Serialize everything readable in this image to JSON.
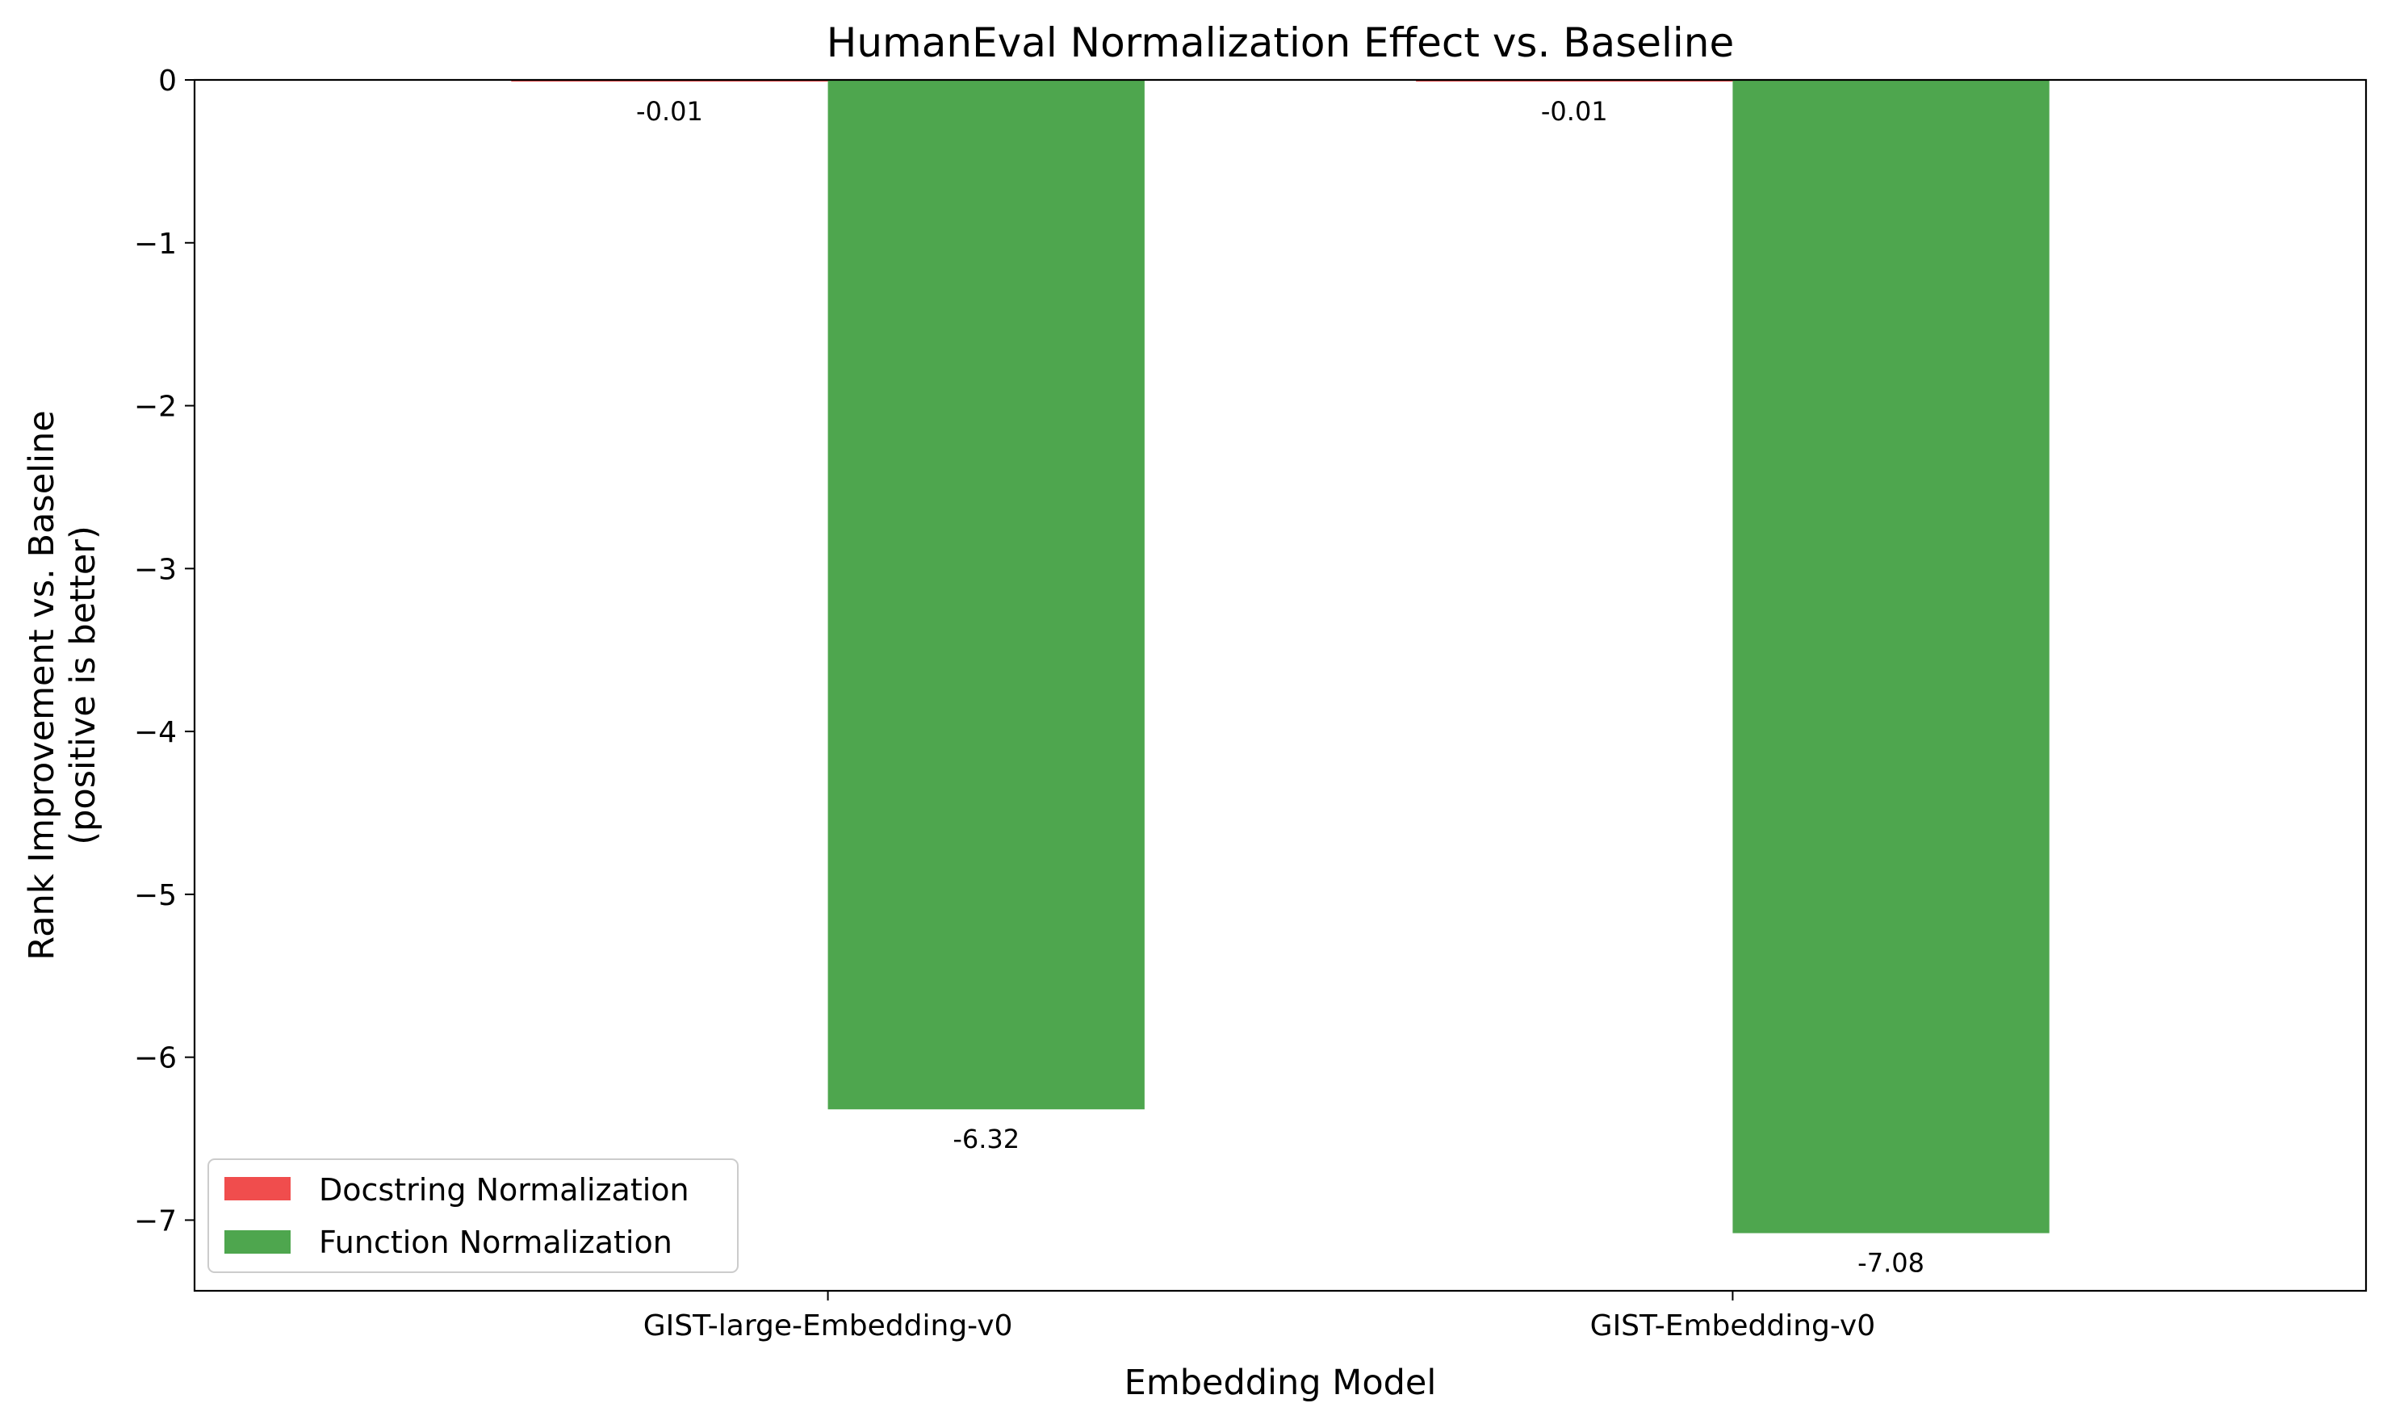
{
  "chart_data": {
    "type": "bar",
    "title": "HumanEval Normalization Effect vs. Baseline",
    "xlabel": "Embedding Model",
    "ylabel": [
      "Rank Improvement vs. Baseline",
      "(positive is better)"
    ],
    "categories": [
      "GIST-large-Embedding-v0",
      "GIST-Embedding-v0"
    ],
    "series": [
      {
        "name": "Docstring Normalization",
        "color": "#f04d4d",
        "values": [
          -0.01,
          -0.01
        ],
        "labels": [
          "-0.01",
          "-0.01"
        ]
      },
      {
        "name": "Function Normalization",
        "color": "#4ea64e",
        "values": [
          -6.32,
          -7.08
        ],
        "labels": [
          "-6.32",
          "-7.08"
        ]
      }
    ],
    "ylim": [
      -7.434,
      0
    ],
    "yticks": [
      0,
      -1,
      -2,
      -3,
      -4,
      -5,
      -6,
      -7
    ],
    "ytick_labels": [
      "0",
      "−1",
      "−2",
      "−3",
      "−4",
      "−5",
      "−6",
      "−7"
    ],
    "grid": false,
    "legend": "lower-left"
  }
}
